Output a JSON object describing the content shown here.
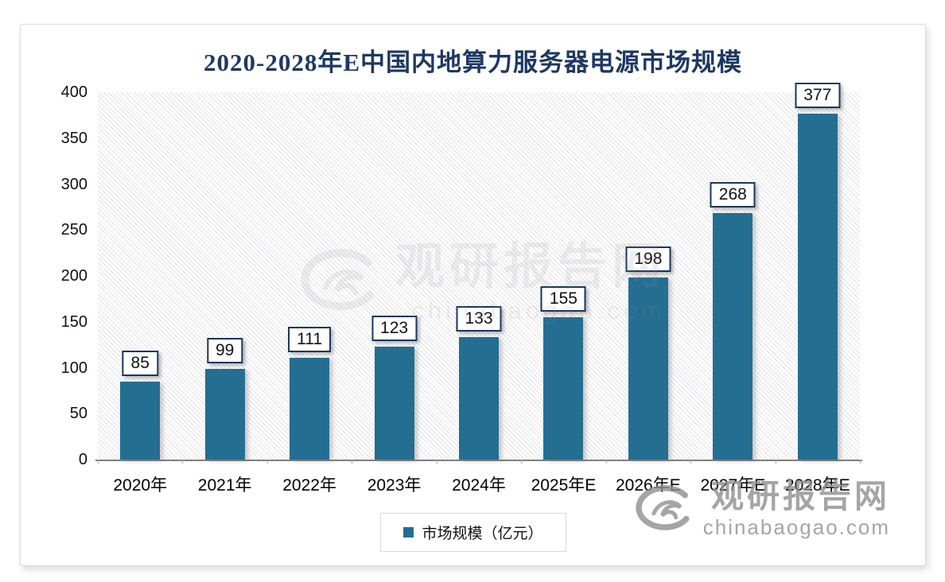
{
  "title": "2020-2028年E中国内地算力服务器电源市场规模",
  "chart_data": {
    "type": "bar",
    "title": "2020-2028年E中国内地算力服务器电源市场规模",
    "categories": [
      "2020年",
      "2021年",
      "2022年",
      "2023年",
      "2024年",
      "2025年E",
      "2026年E",
      "2027年E",
      "2028年E"
    ],
    "values": [
      85,
      99,
      111,
      123,
      133,
      155,
      198,
      268,
      377
    ],
    "series_name": "市场规模（亿元）",
    "xlabel": "",
    "ylabel": "",
    "ylim": [
      0,
      400
    ],
    "yticks": [
      0,
      50,
      100,
      150,
      200,
      250,
      300,
      350,
      400
    ],
    "grid": false,
    "legend_position": "bottom",
    "bar_color": "#246e91",
    "data_label_box": true
  },
  "legend": {
    "label": "市场规模（亿元）"
  },
  "watermark": {
    "brand": "观研报告网",
    "domain": "chinabaogao.com"
  },
  "colors": {
    "bar": "#246e91",
    "title_text": "#1e3864",
    "label_box_border": "#17375e",
    "axis_line": "#7f7f7f",
    "watermark_gray": "#8f8f8f"
  }
}
